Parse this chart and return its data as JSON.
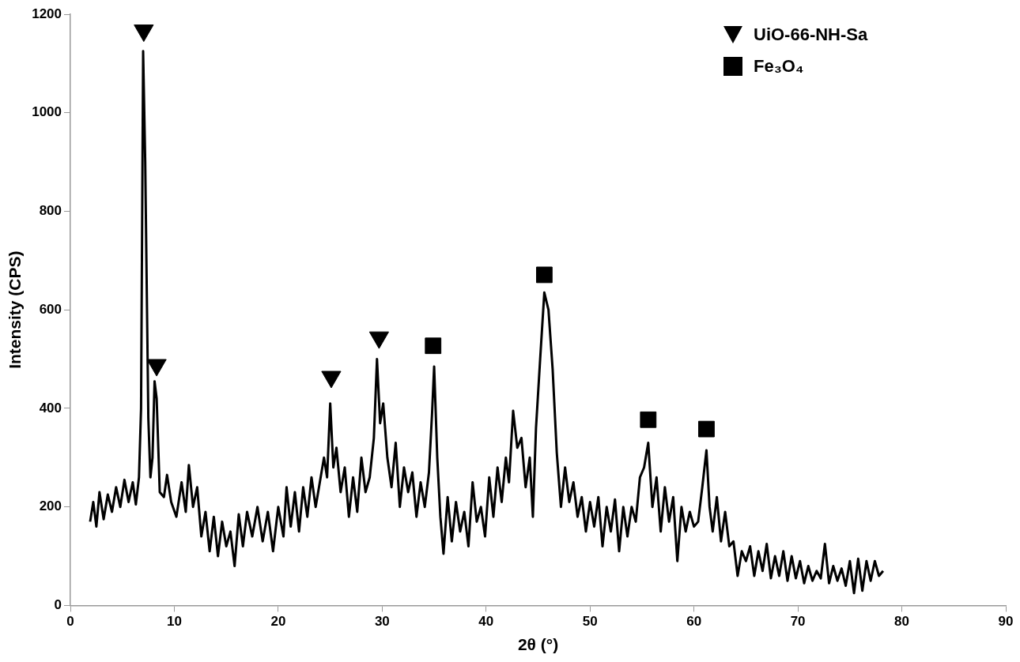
{
  "chart_data": {
    "type": "line",
    "xlabel": "2θ (°)",
    "ylabel": "Intensity (CPS)",
    "xlim": [
      0,
      90
    ],
    "xticks": [
      0,
      10,
      20,
      30,
      40,
      50,
      60,
      70,
      80,
      90
    ],
    "ylim": [
      0,
      1200
    ],
    "yticks": [
      0,
      200,
      400,
      600,
      800,
      1000,
      1200
    ],
    "grid": false,
    "legend": "top right",
    "series": [
      {
        "marker": "none",
        "color": "#000000",
        "x": [
          1.9,
          2.2,
          2.5,
          2.8,
          3.2,
          3.6,
          4.0,
          4.4,
          4.8,
          5.2,
          5.6,
          6.0,
          6.3,
          6.6,
          6.8,
          7.0,
          7.2,
          7.5,
          7.7,
          7.9,
          8.1,
          8.3,
          8.6,
          9.0,
          9.3,
          9.7,
          10.2,
          10.7,
          11.1,
          11.4,
          11.8,
          12.2,
          12.6,
          13.0,
          13.4,
          13.8,
          14.2,
          14.6,
          15.0,
          15.4,
          15.8,
          16.2,
          16.6,
          17.0,
          17.5,
          18.0,
          18.5,
          19.0,
          19.5,
          20.0,
          20.5,
          20.8,
          21.2,
          21.6,
          22.0,
          22.4,
          22.8,
          23.2,
          23.6,
          24.0,
          24.4,
          24.7,
          25.0,
          25.3,
          25.6,
          26.0,
          26.4,
          26.8,
          27.2,
          27.6,
          28.0,
          28.4,
          28.8,
          29.2,
          29.5,
          29.8,
          30.1,
          30.5,
          30.9,
          31.3,
          31.7,
          32.1,
          32.5,
          32.9,
          33.3,
          33.7,
          34.1,
          34.5,
          34.8,
          35.0,
          35.3,
          35.6,
          35.9,
          36.3,
          36.7,
          37.1,
          37.5,
          37.9,
          38.3,
          38.7,
          39.1,
          39.5,
          39.9,
          40.3,
          40.7,
          41.1,
          41.5,
          41.9,
          42.2,
          42.6,
          43.0,
          43.4,
          43.8,
          44.2,
          44.5,
          44.8,
          45.2,
          45.6,
          46.0,
          46.4,
          46.8,
          47.2,
          47.6,
          48.0,
          48.4,
          48.8,
          49.2,
          49.6,
          50.0,
          50.4,
          50.8,
          51.2,
          51.6,
          52.0,
          52.4,
          52.8,
          53.2,
          53.6,
          54.0,
          54.4,
          54.8,
          55.2,
          55.6,
          56.0,
          56.4,
          56.8,
          57.2,
          57.6,
          58.0,
          58.4,
          58.8,
          59.2,
          59.6,
          60.0,
          60.4,
          60.8,
          61.2,
          61.5,
          61.8,
          62.2,
          62.6,
          63.0,
          63.4,
          63.8,
          64.2,
          64.6,
          65.0,
          65.4,
          65.8,
          66.2,
          66.6,
          67.0,
          67.4,
          67.8,
          68.2,
          68.6,
          69.0,
          69.4,
          69.8,
          70.2,
          70.6,
          71.0,
          71.4,
          71.8,
          72.2,
          72.6,
          73.0,
          73.4,
          73.8,
          74.2,
          74.6,
          75.0,
          75.4,
          75.8,
          76.2,
          76.6,
          77.0,
          77.4,
          77.8,
          78.2
        ],
        "values": [
          170,
          210,
          160,
          230,
          175,
          225,
          190,
          240,
          200,
          255,
          210,
          250,
          205,
          260,
          400,
          1125,
          900,
          380,
          260,
          300,
          455,
          420,
          230,
          220,
          265,
          210,
          180,
          250,
          190,
          285,
          200,
          240,
          140,
          190,
          110,
          180,
          100,
          170,
          120,
          150,
          80,
          185,
          120,
          190,
          140,
          200,
          130,
          190,
          110,
          200,
          140,
          240,
          160,
          230,
          150,
          240,
          180,
          260,
          200,
          250,
          300,
          260,
          410,
          280,
          320,
          230,
          280,
          180,
          260,
          190,
          300,
          230,
          260,
          340,
          500,
          370,
          410,
          300,
          240,
          330,
          200,
          280,
          230,
          270,
          180,
          250,
          200,
          270,
          390,
          485,
          300,
          180,
          105,
          220,
          130,
          210,
          150,
          190,
          120,
          250,
          170,
          200,
          140,
          260,
          180,
          280,
          210,
          300,
          250,
          395,
          320,
          340,
          240,
          300,
          180,
          360,
          500,
          635,
          600,
          480,
          310,
          200,
          280,
          210,
          250,
          180,
          220,
          150,
          210,
          160,
          220,
          120,
          200,
          150,
          215,
          110,
          200,
          140,
          200,
          170,
          260,
          280,
          330,
          200,
          260,
          150,
          240,
          170,
          220,
          90,
          200,
          150,
          190,
          160,
          170,
          240,
          315,
          200,
          150,
          220,
          130,
          190,
          120,
          130,
          60,
          110,
          90,
          120,
          60,
          110,
          70,
          125,
          55,
          100,
          60,
          110,
          50,
          100,
          55,
          90,
          45,
          80,
          50,
          70,
          55,
          125,
          45,
          80,
          50,
          75,
          40,
          90,
          25,
          95,
          30,
          90,
          50,
          90,
          60,
          70
        ]
      },
      {
        "type": "scatter",
        "name": "UiO-66-NH-Sa",
        "marker": "triangle",
        "color": "#000000",
        "x": [
          7.06,
          8.3,
          25.1,
          29.7
        ],
        "values": [
          1167,
          488,
          464,
          544
        ]
      },
      {
        "type": "scatter",
        "name": "Fe₃O₄",
        "marker": "square",
        "color": "#000000",
        "x": [
          34.9,
          45.6,
          55.6,
          61.2
        ],
        "values": [
          527,
          671,
          377,
          358
        ]
      }
    ]
  }
}
